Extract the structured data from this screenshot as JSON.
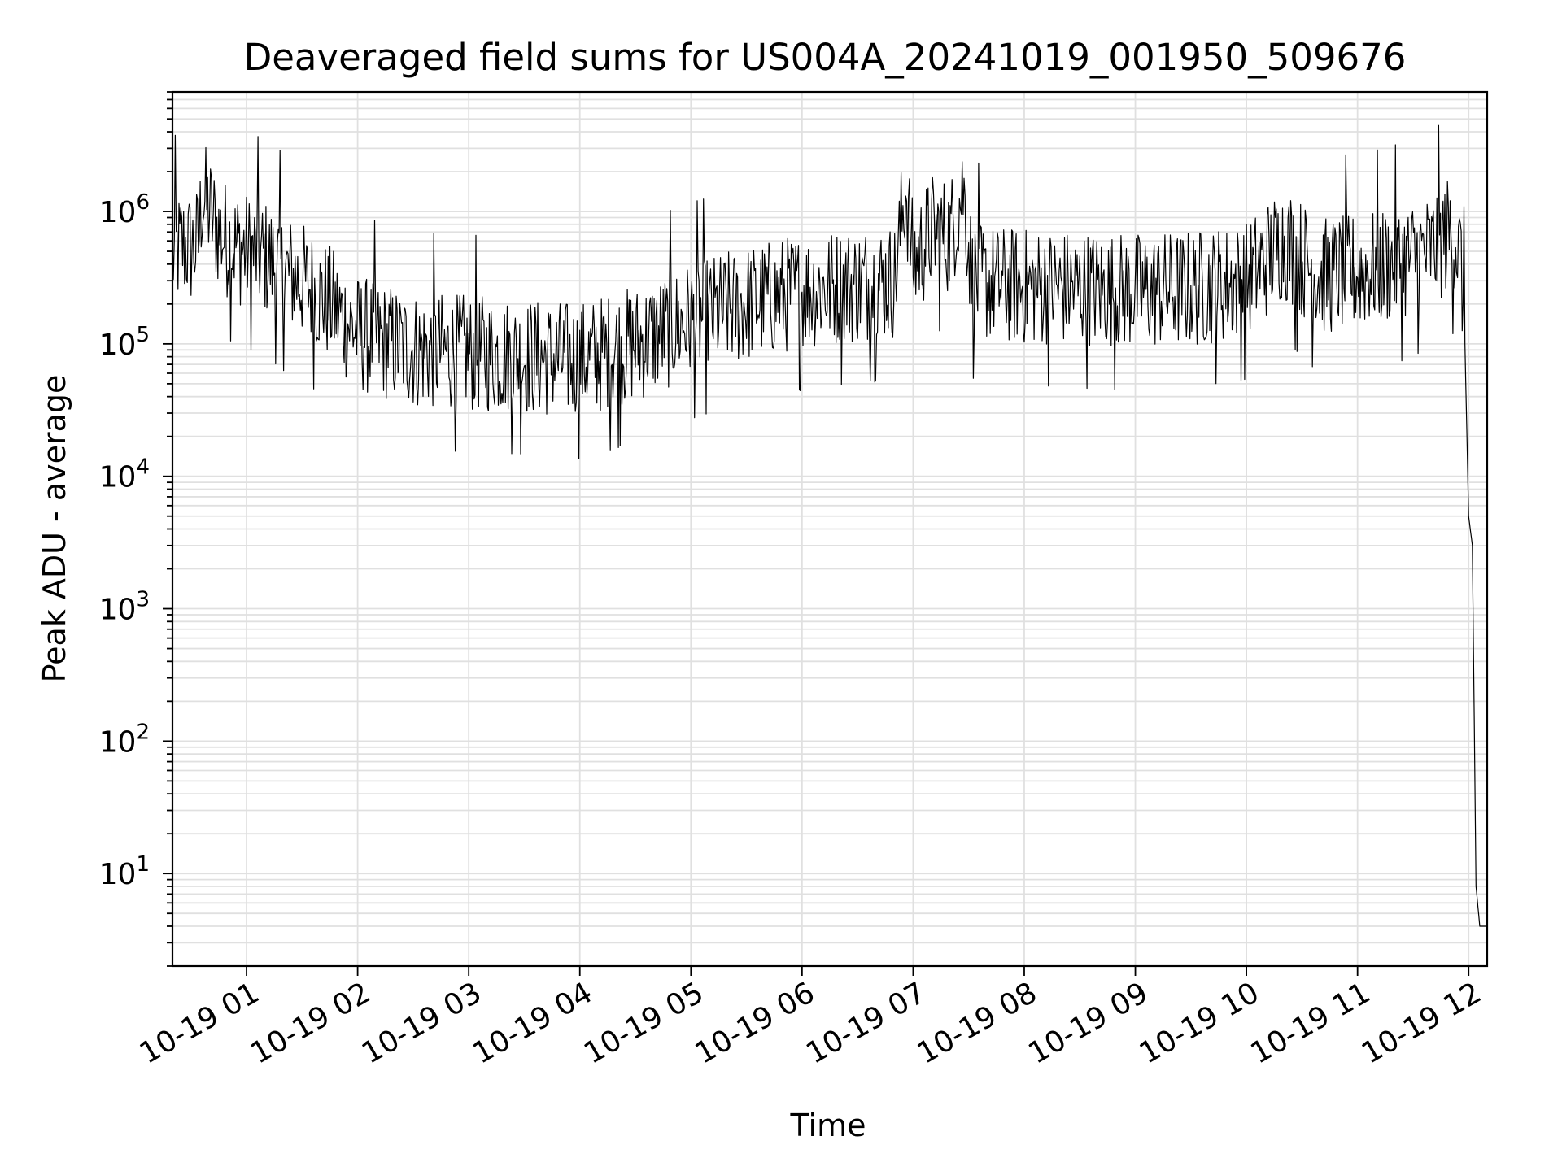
{
  "chart_data": {
    "type": "line",
    "title": "Deaveraged field sums for US004A_20241019_001950_509676",
    "xlabel": "Time",
    "ylabel": "Peak ADU - average",
    "yscale": "log",
    "ylim": [
      2,
      8000000
    ],
    "xlim": [
      "2024-10-19 00:20",
      "2024-10-19 12:10"
    ],
    "grid": true,
    "x_ticks": [
      {
        "t": "2024-10-19 01:00",
        "label": "10-19 01"
      },
      {
        "t": "2024-10-19 02:00",
        "label": "10-19 02"
      },
      {
        "t": "2024-10-19 03:00",
        "label": "10-19 03"
      },
      {
        "t": "2024-10-19 04:00",
        "label": "10-19 04"
      },
      {
        "t": "2024-10-19 05:00",
        "label": "10-19 05"
      },
      {
        "t": "2024-10-19 06:00",
        "label": "10-19 06"
      },
      {
        "t": "2024-10-19 07:00",
        "label": "10-19 07"
      },
      {
        "t": "2024-10-19 08:00",
        "label": "10-19 08"
      },
      {
        "t": "2024-10-19 09:00",
        "label": "10-19 09"
      },
      {
        "t": "2024-10-19 10:00",
        "label": "10-19 10"
      },
      {
        "t": "2024-10-19 11:00",
        "label": "10-19 11"
      },
      {
        "t": "2024-10-19 12:00",
        "label": "10-19 12"
      }
    ],
    "y_ticks": [
      {
        "value": 10,
        "base": "10",
        "exp": "1"
      },
      {
        "value": 100,
        "base": "10",
        "exp": "2"
      },
      {
        "value": 1000,
        "base": "10",
        "exp": "3"
      },
      {
        "value": 10000,
        "base": "10",
        "exp": "4"
      },
      {
        "value": 100000,
        "base": "10",
        "exp": "5"
      },
      {
        "value": 1000000,
        "base": "10",
        "exp": "6"
      }
    ],
    "line_color": "#000000",
    "grid_color": "#e0e0e0",
    "series": [
      {
        "x": [
          "2024-10-19 00:20",
          "2024-10-19 00:25",
          "2024-10-19 00:30",
          "2024-10-19 00:34",
          "2024-10-19 00:36",
          "2024-10-19 00:40",
          "2024-10-19 00:45",
          "2024-10-19 00:50",
          "2024-10-19 01:00",
          "2024-10-19 01:10",
          "2024-10-19 01:20",
          "2024-10-19 01:30",
          "2024-10-19 01:45",
          "2024-10-19 02:00",
          "2024-10-19 02:30",
          "2024-10-19 03:00",
          "2024-10-19 03:30",
          "2024-10-19 04:00",
          "2024-10-19 04:30",
          "2024-10-19 05:00",
          "2024-10-19 05:30",
          "2024-10-19 06:00",
          "2024-10-19 06:30",
          "2024-10-19 06:50",
          "2024-10-19 06:56",
          "2024-10-19 07:00",
          "2024-10-19 07:10",
          "2024-10-19 07:20",
          "2024-10-19 07:27",
          "2024-10-19 07:32",
          "2024-10-19 07:45",
          "2024-10-19 08:00",
          "2024-10-19 08:30",
          "2024-10-19 09:00",
          "2024-10-19 09:30",
          "2024-10-19 10:00",
          "2024-10-19 10:20",
          "2024-10-19 10:40",
          "2024-10-19 11:00",
          "2024-10-19 11:20",
          "2024-10-19 11:40",
          "2024-10-19 11:50",
          "2024-10-19 11:53",
          "2024-10-19 11:56",
          "2024-10-19 11:58",
          "2024-10-19 12:00",
          "2024-10-19 12:02",
          "2024-10-19 12:04",
          "2024-10-19 12:06",
          "2024-10-19 12:10"
        ],
        "y": [
          450000,
          550000,
          520000,
          580000,
          1300000,
          1000000,
          700000,
          600000,
          500000,
          450000,
          350000,
          300000,
          200000,
          120000,
          90000,
          85000,
          80000,
          75000,
          100000,
          150000,
          200000,
          250000,
          280000,
          300000,
          1500000,
          400000,
          700000,
          650000,
          1500000,
          300000,
          280000,
          270000,
          260000,
          250000,
          260000,
          300000,
          600000,
          320000,
          350000,
          400000,
          500000,
          700000,
          600000,
          400000,
          100000,
          5000,
          3000,
          8,
          4,
          4
        ]
      }
    ]
  }
}
